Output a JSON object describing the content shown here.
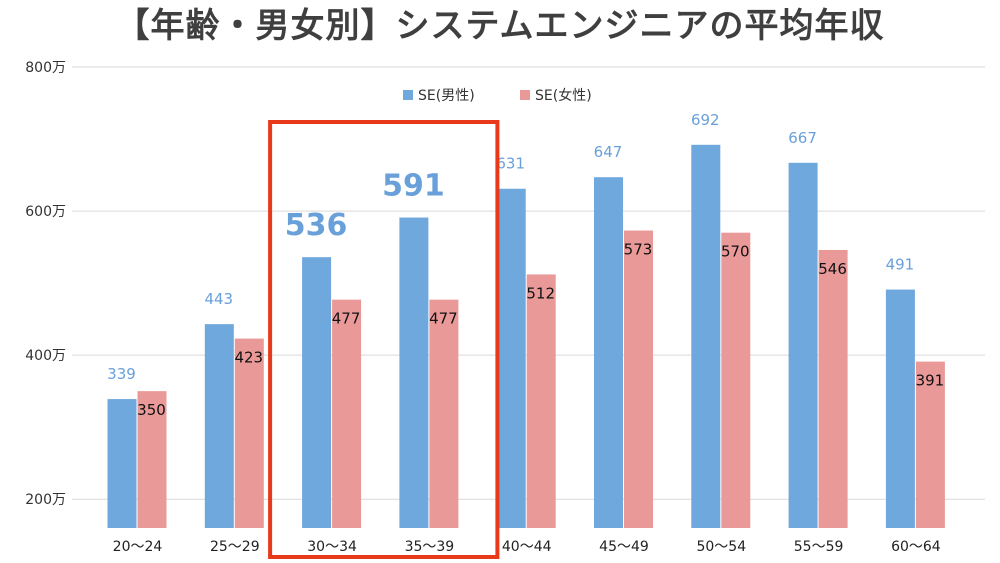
{
  "chart_data": {
    "type": "bar",
    "title": "【年齢・男女別】システムエンジニアの平均年収",
    "categories": [
      "20〜24",
      "25〜29",
      "30〜34",
      "35〜39",
      "40〜44",
      "45〜49",
      "50〜54",
      "55〜59",
      "60〜64"
    ],
    "series": [
      {
        "name": "SE(男性)",
        "color": "#6fa8dc",
        "values": [
          339,
          443,
          536,
          591,
          631,
          647,
          692,
          667,
          491
        ]
      },
      {
        "name": "SE(女性)",
        "color": "#ea9999",
        "values": [
          350,
          423,
          477,
          477,
          512,
          573,
          570,
          546,
          391
        ]
      }
    ],
    "yticks": [
      "200万",
      "400万",
      "600万",
      "800万"
    ],
    "ytick_values": [
      200,
      400,
      600,
      800
    ],
    "ylim": [
      160,
      800
    ],
    "grid": true,
    "legend_position": "top-center",
    "highlight": {
      "categories": [
        "30〜34",
        "35〜39"
      ],
      "color": "#e8391b"
    }
  }
}
